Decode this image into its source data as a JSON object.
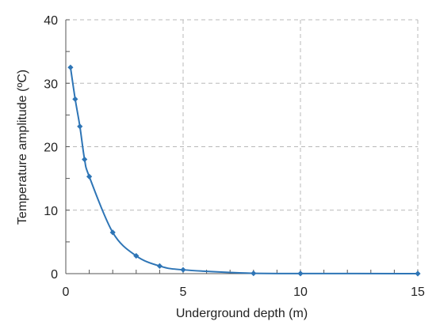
{
  "chart_data": {
    "type": "line",
    "xlabel": "Underground depth (m)",
    "ylabel": "Temperature amplitude (ºC)",
    "xlim": [
      0,
      15
    ],
    "ylim": [
      0,
      40
    ],
    "x_ticks": [
      0,
      5,
      10,
      15
    ],
    "y_ticks": [
      0,
      10,
      20,
      30,
      40
    ],
    "x_tick_labels": [
      "0",
      "5",
      "10",
      "15"
    ],
    "y_tick_labels": [
      "0",
      "10",
      "20",
      "30",
      "40"
    ],
    "grid": "dashed, major ticks",
    "legend": "none",
    "series": [
      {
        "color": "#2E75B6",
        "marker": "diamond",
        "smooth": true,
        "x": [
          0.2,
          0.4,
          0.6,
          0.8,
          1.0,
          2.0,
          3.0,
          4.0,
          5.0,
          8.0,
          10.0,
          15.0
        ],
        "y": [
          32.5,
          27.5,
          23.2,
          18.0,
          15.3,
          6.5,
          2.8,
          1.2,
          0.6,
          0.05,
          0.02,
          0.0
        ]
      }
    ]
  }
}
